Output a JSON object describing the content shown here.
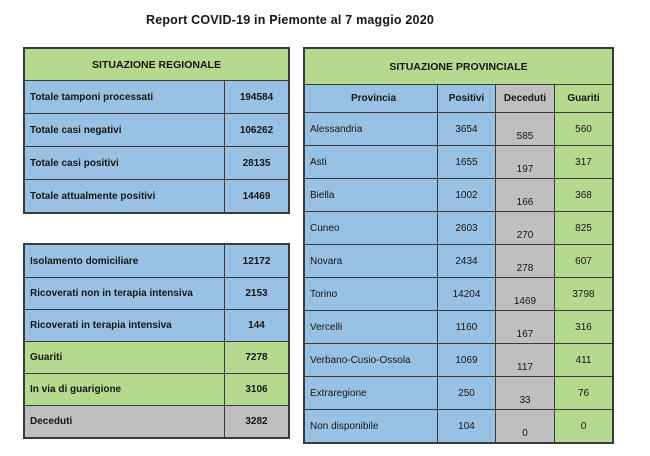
{
  "title": "Report COVID-19 in Piemonte al 7 maggio 2020",
  "colors": {
    "header_green": "#b5d98e",
    "row_blue": "#98c1e3",
    "deceduti_gray": "#bfbfbf",
    "border": "#3a3a3a"
  },
  "regionale": {
    "header": "SITUAZIONE REGIONALE",
    "rows": [
      {
        "label": "Totale tamponi processati",
        "value": "194584",
        "tone": "blue"
      },
      {
        "label": "Totale casi negativi",
        "value": "106262",
        "tone": "blue"
      },
      {
        "label": "Totale casi positivi",
        "value": "28135",
        "tone": "blue"
      },
      {
        "label": "Totale attualmente positivi",
        "value": "14469",
        "tone": "blue"
      }
    ]
  },
  "dettaglio": {
    "rows": [
      {
        "label": "Isolamento domiciliare",
        "value": "12172",
        "tone": "blue"
      },
      {
        "label": "Ricoverati non in terapia intensiva",
        "value": "2153",
        "tone": "blue"
      },
      {
        "label": "Ricoverati in terapia intensiva",
        "value": "144",
        "tone": "blue"
      },
      {
        "label": "Guariti",
        "value": "7278",
        "tone": "green"
      },
      {
        "label": "In via di guarigione",
        "value": "3106",
        "tone": "green"
      },
      {
        "label": "Deceduti",
        "value": "3282",
        "tone": "gray"
      }
    ]
  },
  "provinciale": {
    "header": "SITUAZIONE PROVINCIALE",
    "columns": {
      "provincia": "Provincia",
      "positivi": "Positivi",
      "deceduti": "Deceduti",
      "guariti": "Guariti"
    },
    "rows": [
      {
        "provincia": "Alessandria",
        "positivi": "3654",
        "deceduti": "585",
        "guariti": "560"
      },
      {
        "provincia": "Asti",
        "positivi": "1655",
        "deceduti": "197",
        "guariti": "317"
      },
      {
        "provincia": "Biella",
        "positivi": "1002",
        "deceduti": "166",
        "guariti": "368"
      },
      {
        "provincia": "Cuneo",
        "positivi": "2603",
        "deceduti": "270",
        "guariti": "825"
      },
      {
        "provincia": "Novara",
        "positivi": "2434",
        "deceduti": "278",
        "guariti": "607"
      },
      {
        "provincia": "Torino",
        "positivi": "14204",
        "deceduti": "1469",
        "guariti": "3798"
      },
      {
        "provincia": "Vercelli",
        "positivi": "1160",
        "deceduti": "167",
        "guariti": "316"
      },
      {
        "provincia": "Verbano-Cusio-Ossola",
        "positivi": "1069",
        "deceduti": "117",
        "guariti": "411"
      },
      {
        "provincia": "Extraregione",
        "positivi": "250",
        "deceduti": "33",
        "guariti": "76"
      },
      {
        "provincia": "Non disponibile",
        "positivi": "104",
        "deceduti": "0",
        "guariti": "0"
      }
    ]
  }
}
